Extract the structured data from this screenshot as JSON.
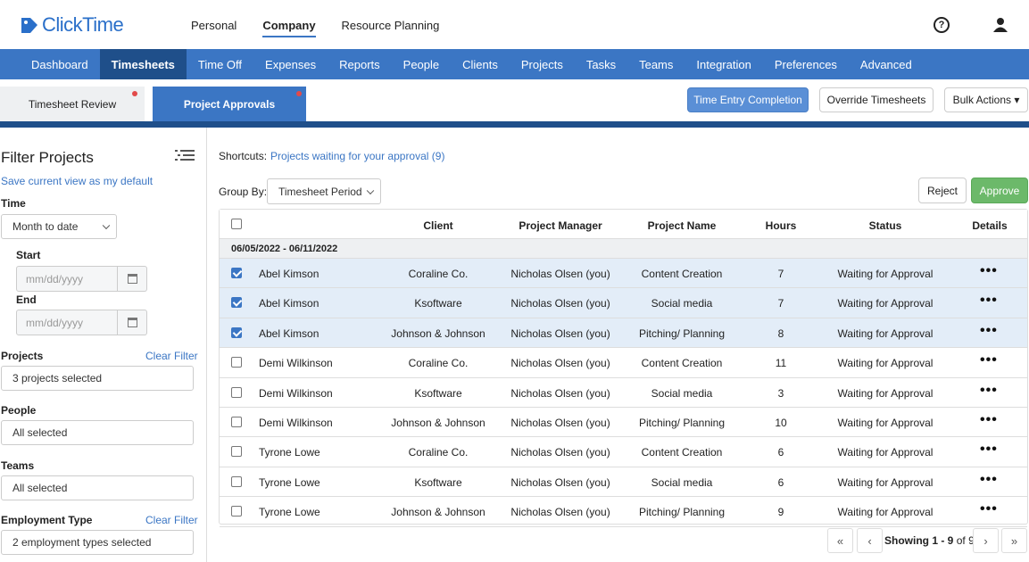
{
  "app": {
    "logo_text": "ClickTime"
  },
  "topnav": {
    "items": [
      "Personal",
      "Company",
      "Resource Planning"
    ],
    "active": "Company"
  },
  "mainnav": {
    "items": [
      "Dashboard",
      "Timesheets",
      "Time Off",
      "Expenses",
      "Reports",
      "People",
      "Clients",
      "Projects",
      "Tasks",
      "Teams",
      "Integration",
      "Preferences",
      "Advanced"
    ],
    "active": "Timesheets"
  },
  "subtabs": {
    "review": "Timesheet Review",
    "approvals": "Project Approvals"
  },
  "toolbar": {
    "time_entry": "Time Entry Completion",
    "override": "Override Timesheets",
    "bulk": "Bulk Actions ▾"
  },
  "sidebar": {
    "title": "Filter Projects",
    "save_default": "Save current view as my default",
    "time_label": "Time",
    "time_value": "Month to date",
    "start_label": "Start",
    "start_placeholder": "mm/dd/yyyy",
    "end_label": "End",
    "end_placeholder": "mm/dd/yyyy",
    "projects_label": "Projects",
    "projects_clear": "Clear Filter",
    "projects_value": "3 projects selected",
    "people_label": "People",
    "people_value": "All selected",
    "teams_label": "Teams",
    "teams_value": "All selected",
    "employment_label": "Employment Type",
    "employment_clear": "Clear Filter",
    "employment_value": "2 employment types selected"
  },
  "main": {
    "shortcuts_label": "Shortcuts:",
    "shortcuts_link": "Projects waiting for your approval (9)",
    "groupby_label": "Group By:",
    "groupby_value": "Timesheet Period",
    "reject": "Reject",
    "approve": "Approve"
  },
  "table": {
    "headers": {
      "client": "Client",
      "manager": "Project Manager",
      "project": "Project Name",
      "hours": "Hours",
      "status": "Status",
      "details": "Details"
    },
    "group": "06/05/2022 - 06/11/2022",
    "rows": [
      {
        "person": "Abel Kimson",
        "client": "Coraline Co.",
        "manager": "Nicholas Olsen (you)",
        "project": "Content Creation",
        "hours": "7",
        "status": "Waiting for Approval",
        "checked": true
      },
      {
        "person": "Abel Kimson",
        "client": "Ksoftware",
        "manager": "Nicholas Olsen (you)",
        "project": "Social media",
        "hours": "7",
        "status": "Waiting for Approval",
        "checked": true
      },
      {
        "person": "Abel Kimson",
        "client": "Johnson & Johnson",
        "manager": "Nicholas Olsen (you)",
        "project": "Pitching/ Planning",
        "hours": "8",
        "status": "Waiting for Approval",
        "checked": true
      },
      {
        "person": "Demi Wilkinson",
        "client": "Coraline Co.",
        "manager": "Nicholas Olsen (you)",
        "project": "Content Creation",
        "hours": "11",
        "status": "Waiting for Approval",
        "checked": false
      },
      {
        "person": "Demi Wilkinson",
        "client": "Ksoftware",
        "manager": "Nicholas Olsen (you)",
        "project": "Social media",
        "hours": "3",
        "status": "Waiting for Approval",
        "checked": false
      },
      {
        "person": "Demi Wilkinson",
        "client": "Johnson & Johnson",
        "manager": "Nicholas Olsen (you)",
        "project": "Pitching/ Planning",
        "hours": "10",
        "status": "Waiting for Approval",
        "checked": false
      },
      {
        "person": "Tyrone Lowe",
        "client": "Coraline Co.",
        "manager": "Nicholas Olsen (you)",
        "project": "Content Creation",
        "hours": "6",
        "status": "Waiting for Approval",
        "checked": false
      },
      {
        "person": "Tyrone Lowe",
        "client": "Ksoftware",
        "manager": "Nicholas Olsen (you)",
        "project": "Social media",
        "hours": "6",
        "status": "Waiting for Approval",
        "checked": false
      },
      {
        "person": "Tyrone Lowe",
        "client": "Johnson & Johnson",
        "manager": "Nicholas Olsen (you)",
        "project": "Pitching/ Planning",
        "hours": "9",
        "status": "Waiting for Approval",
        "checked": false
      }
    ],
    "details_glyph": "•••"
  },
  "pager": {
    "first": "«",
    "prev": "‹",
    "next": "›",
    "last": "»",
    "showing_label": "Showing",
    "range": "1 - 9",
    "of_label": "of",
    "total": "9"
  },
  "colors": {
    "brand": "#3b76c4",
    "nav_active": "#1f4f8a",
    "approve": "#6cb96a",
    "selected_row": "#e3edf8"
  },
  "icons": {
    "help": "question-circle-icon",
    "user": "user-icon",
    "list": "list-icon",
    "calendar": "calendar-icon",
    "chevron": "chevron-down-icon"
  }
}
